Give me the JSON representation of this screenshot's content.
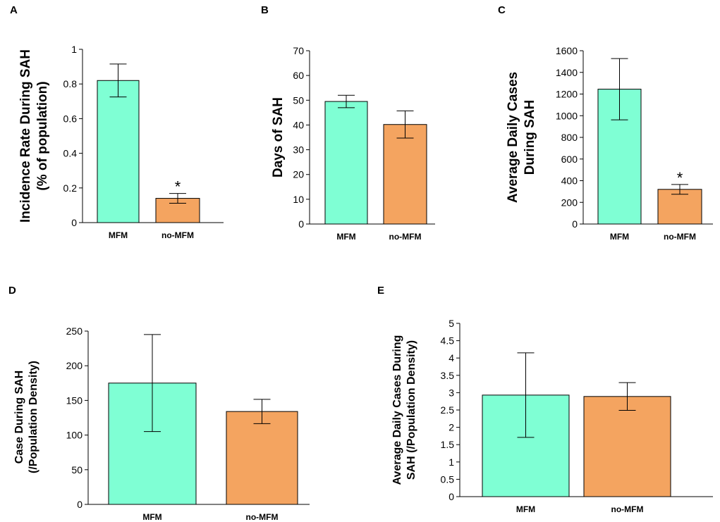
{
  "colors": {
    "mfm": "#7fffd4",
    "no_mfm": "#f4a460",
    "stroke": "#000000"
  },
  "chart_data": [
    {
      "panel": "A",
      "type": "bar",
      "categories": [
        "MFM",
        "no-MFM"
      ],
      "values": [
        0.82,
        0.14
      ],
      "errors": [
        0.095,
        0.028
      ],
      "significance": [
        "",
        "*"
      ],
      "ylabel_lines": [
        "Incidence Rate During SAH",
        "(% of population)"
      ],
      "ylim": [
        0,
        1
      ],
      "yticks": [
        0,
        0.2,
        0.4,
        0.6,
        0.8,
        1
      ],
      "ytick_labels": [
        "0",
        "0.2",
        "0.4",
        "0.6",
        "0.8",
        "1"
      ]
    },
    {
      "panel": "B",
      "type": "bar",
      "categories": [
        "MFM",
        "no-MFM"
      ],
      "values": [
        49.5,
        40.2
      ],
      "errors": [
        2.5,
        5.5
      ],
      "significance": [
        "",
        ""
      ],
      "ylabel_lines": [
        "Days of SAH"
      ],
      "ylim": [
        0,
        70
      ],
      "yticks": [
        0,
        10,
        20,
        30,
        40,
        50,
        60,
        70
      ],
      "ytick_labels": [
        "0",
        "10",
        "20",
        "30",
        "40",
        "50",
        "60",
        "70"
      ]
    },
    {
      "panel": "C",
      "type": "bar",
      "categories": [
        "MFM",
        "no-MFM"
      ],
      "values": [
        1245,
        320
      ],
      "errors": [
        283,
        45
      ],
      "significance": [
        "",
        "*"
      ],
      "ylabel_lines": [
        "Average Daily Cases",
        "During SAH"
      ],
      "ylim": [
        0,
        1600
      ],
      "yticks": [
        0,
        200,
        400,
        600,
        800,
        1000,
        1200,
        1400,
        1600
      ],
      "ytick_labels": [
        "0",
        "200",
        "400",
        "600",
        "800",
        "1000",
        "1200",
        "1400",
        "1600"
      ]
    },
    {
      "panel": "D",
      "type": "bar",
      "categories": [
        "MFM",
        "no-MFM"
      ],
      "values": [
        175,
        134
      ],
      "errors": [
        70,
        17.5
      ],
      "significance": [
        "",
        ""
      ],
      "ylabel_lines": [
        "Case During SAH",
        "(/Population Density)"
      ],
      "ylim": [
        0,
        250
      ],
      "yticks": [
        0,
        50,
        100,
        150,
        200,
        250
      ],
      "ytick_labels": [
        "0",
        "50",
        "100",
        "150",
        "200",
        "250"
      ]
    },
    {
      "panel": "E",
      "type": "bar",
      "categories": [
        "MFM",
        "no-MFM"
      ],
      "values": [
        2.93,
        2.89
      ],
      "errors": [
        1.22,
        0.4
      ],
      "significance": [
        "",
        ""
      ],
      "ylabel_lines": [
        "Average Daily Cases During",
        "SAH (/Population Density)"
      ],
      "ylim": [
        0,
        5
      ],
      "yticks": [
        0,
        0.5,
        1,
        1.5,
        2,
        2.5,
        3,
        3.5,
        4,
        4.5,
        5
      ],
      "ytick_labels": [
        "0",
        "0.5",
        "1",
        "1.5",
        "2",
        "2.5",
        "3",
        "3.5",
        "4",
        "4.5",
        "5"
      ]
    }
  ]
}
